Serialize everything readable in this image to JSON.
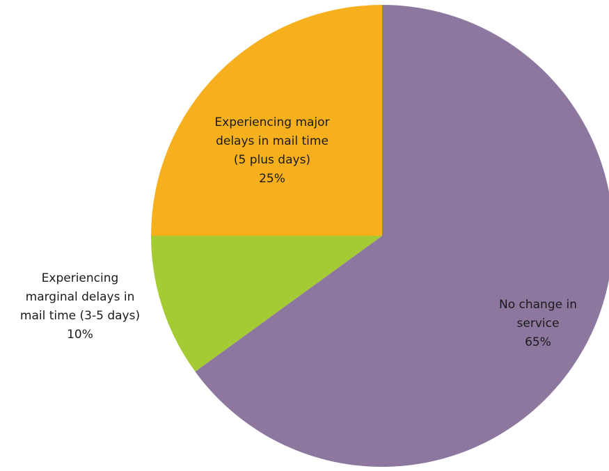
{
  "chart_data": {
    "type": "pie",
    "title": "",
    "start_direction": "top",
    "direction": "clockwise",
    "slices": [
      {
        "name": "No change in service",
        "value": 65,
        "label_lines": [
          "No change in",
          "service",
          "65%"
        ],
        "color": "#8d779e"
      },
      {
        "name": "Experiencing marginal delays in mail time (3-5 days)",
        "value": 10,
        "label_lines": [
          "Experiencing",
          "marginal delays in",
          "mail time (3-5 days)",
          "10%"
        ],
        "color": "#a4cb34"
      },
      {
        "name": "Experiencing major delays in mail time (5 plus days)",
        "value": 25,
        "label_lines": [
          "Experiencing major",
          "delays in mail time",
          "(5 plus days)",
          "25%"
        ],
        "color": "#f6b01e"
      }
    ]
  }
}
